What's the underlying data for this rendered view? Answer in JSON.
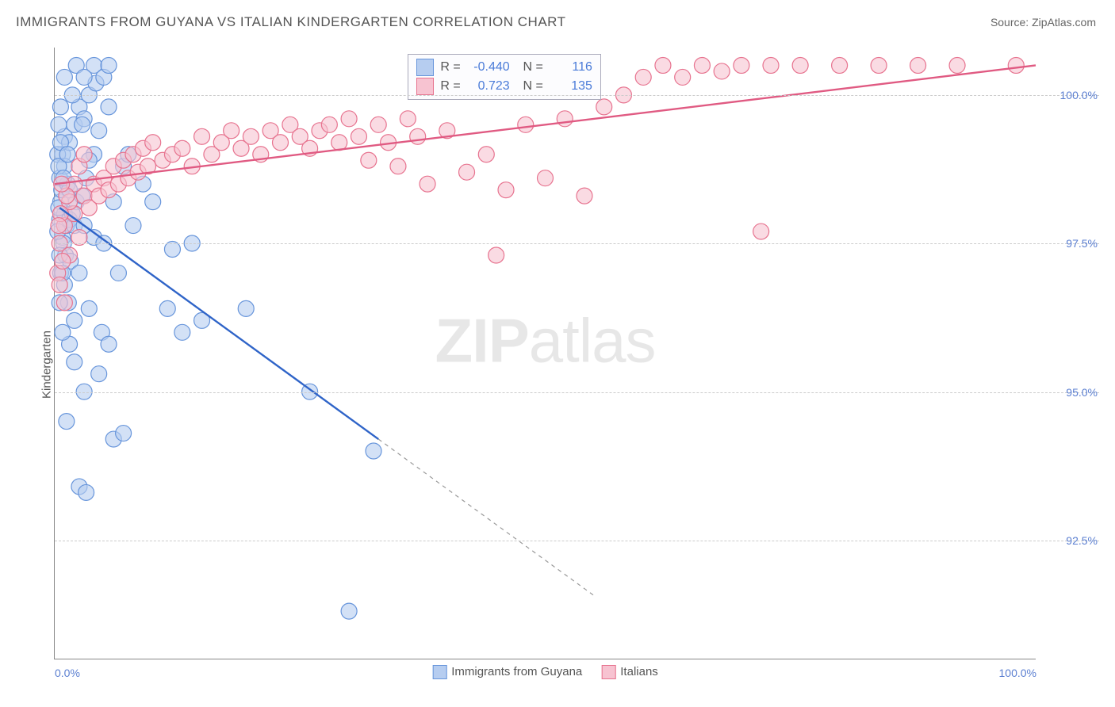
{
  "title": "IMMIGRANTS FROM GUYANA VS ITALIAN KINDERGARTEN CORRELATION CHART",
  "source_label": "Source:",
  "source_name": "ZipAtlas.com",
  "ylabel": "Kindergarten",
  "watermark_a": "ZIP",
  "watermark_b": "atlas",
  "chart": {
    "type": "scatter",
    "xlim": [
      0,
      100
    ],
    "ylim": [
      90.5,
      100.8
    ],
    "xtick_labels": [
      "0.0%",
      "100.0%"
    ],
    "xtick_pos": [
      0,
      100
    ],
    "yticks": [
      92.5,
      95.0,
      97.5,
      100.0
    ],
    "ytick_labels": [
      "92.5%",
      "95.0%",
      "97.5%",
      "100.0%"
    ],
    "grid_color": "#cccccc",
    "axis_color": "#888888",
    "background_color": "#ffffff",
    "tick_label_color": "#5b7fd1",
    "marker_radius": 10,
    "marker_stroke_width": 1.2,
    "series": [
      {
        "name": "Immigrants from Guyana",
        "fill": "#b6cdf0",
        "stroke": "#6795db",
        "fill_opacity": 0.6,
        "R": "-0.440",
        "N": "116",
        "trend": {
          "x1": 0.5,
          "y1": 98.1,
          "x2": 33,
          "y2": 94.2,
          "extend_to_x": 55,
          "stroke": "#2f64c8",
          "width": 2.4,
          "dash": "5,5"
        },
        "points": [
          [
            0.5,
            97.9
          ],
          [
            0.8,
            97.6
          ],
          [
            1.0,
            98.0
          ],
          [
            0.6,
            98.2
          ],
          [
            1.2,
            97.8
          ],
          [
            0.9,
            97.5
          ],
          [
            1.5,
            97.9
          ],
          [
            1.1,
            97.3
          ],
          [
            2.0,
            97.8
          ],
          [
            0.7,
            98.4
          ],
          [
            0.4,
            98.1
          ],
          [
            1.3,
            98.5
          ],
          [
            2.2,
            98.2
          ],
          [
            1.8,
            98.0
          ],
          [
            0.5,
            98.6
          ],
          [
            1.6,
            97.2
          ],
          [
            2.5,
            97.0
          ],
          [
            3.0,
            97.8
          ],
          [
            2.8,
            98.3
          ],
          [
            0.3,
            97.7
          ],
          [
            0.6,
            97.0
          ],
          [
            1.0,
            96.8
          ],
          [
            1.4,
            96.5
          ],
          [
            2.0,
            96.2
          ],
          [
            3.5,
            96.4
          ],
          [
            4.0,
            97.6
          ],
          [
            3.2,
            98.6
          ],
          [
            0.8,
            99.0
          ],
          [
            1.0,
            99.3
          ],
          [
            1.5,
            99.2
          ],
          [
            2.0,
            99.5
          ],
          [
            2.5,
            99.8
          ],
          [
            3.0,
            99.6
          ],
          [
            3.5,
            100.0
          ],
          [
            4.2,
            100.2
          ],
          [
            4.0,
            100.5
          ],
          [
            5.0,
            100.3
          ],
          [
            4.5,
            99.4
          ],
          [
            5.5,
            99.8
          ],
          [
            6.0,
            98.2
          ],
          [
            5.0,
            97.5
          ],
          [
            6.5,
            97.0
          ],
          [
            7.0,
            98.8
          ],
          [
            7.5,
            99.0
          ],
          [
            8.0,
            97.8
          ],
          [
            4.8,
            96.0
          ],
          [
            5.5,
            95.8
          ],
          [
            2.0,
            95.5
          ],
          [
            3.0,
            95.0
          ],
          [
            4.5,
            95.3
          ],
          [
            1.5,
            95.8
          ],
          [
            0.8,
            96.0
          ],
          [
            0.5,
            96.5
          ],
          [
            1.2,
            94.5
          ],
          [
            6.0,
            94.2
          ],
          [
            7.0,
            94.3
          ],
          [
            2.5,
            93.4
          ],
          [
            3.2,
            93.3
          ],
          [
            9.0,
            98.5
          ],
          [
            10.0,
            98.2
          ],
          [
            11.5,
            96.4
          ],
          [
            12.0,
            97.4
          ],
          [
            13.0,
            96.0
          ],
          [
            14.0,
            97.5
          ],
          [
            15.0,
            96.2
          ],
          [
            19.5,
            96.4
          ],
          [
            26.0,
            95.0
          ],
          [
            32.5,
            94.0
          ],
          [
            30.0,
            91.3
          ],
          [
            5.5,
            100.5
          ],
          [
            4.0,
            99.0
          ],
          [
            3.5,
            98.9
          ],
          [
            2.8,
            99.5
          ],
          [
            1.8,
            100.0
          ],
          [
            1.0,
            100.3
          ],
          [
            0.6,
            99.8
          ],
          [
            0.4,
            99.5
          ],
          [
            0.3,
            99.0
          ],
          [
            2.2,
            100.5
          ],
          [
            3.0,
            100.3
          ],
          [
            0.5,
            97.3
          ],
          [
            0.8,
            97.0
          ],
          [
            1.0,
            98.8
          ],
          [
            1.5,
            98.4
          ],
          [
            0.4,
            98.8
          ],
          [
            0.6,
            99.2
          ],
          [
            0.9,
            98.6
          ],
          [
            1.3,
            99.0
          ]
        ]
      },
      {
        "name": "Italians",
        "fill": "#f7c3d1",
        "stroke": "#e7738f",
        "fill_opacity": 0.6,
        "R": "0.723",
        "N": "135",
        "trend": {
          "x1": 0,
          "y1": 98.5,
          "x2": 100,
          "y2": 100.5,
          "stroke": "#e05a82",
          "width": 2.4
        },
        "points": [
          [
            0.5,
            97.5
          ],
          [
            1.0,
            97.8
          ],
          [
            1.5,
            97.3
          ],
          [
            2.0,
            98.0
          ],
          [
            2.5,
            97.6
          ],
          [
            3.0,
            98.3
          ],
          [
            3.5,
            98.1
          ],
          [
            4.0,
            98.5
          ],
          [
            4.5,
            98.3
          ],
          [
            5.0,
            98.6
          ],
          [
            5.5,
            98.4
          ],
          [
            6.0,
            98.8
          ],
          [
            6.5,
            98.5
          ],
          [
            7.0,
            98.9
          ],
          [
            7.5,
            98.6
          ],
          [
            8.0,
            99.0
          ],
          [
            8.5,
            98.7
          ],
          [
            9.0,
            99.1
          ],
          [
            9.5,
            98.8
          ],
          [
            10.0,
            99.2
          ],
          [
            11.0,
            98.9
          ],
          [
            12.0,
            99.0
          ],
          [
            13.0,
            99.1
          ],
          [
            14.0,
            98.8
          ],
          [
            15.0,
            99.3
          ],
          [
            16.0,
            99.0
          ],
          [
            17.0,
            99.2
          ],
          [
            18.0,
            99.4
          ],
          [
            19.0,
            99.1
          ],
          [
            20.0,
            99.3
          ],
          [
            21.0,
            99.0
          ],
          [
            22.0,
            99.4
          ],
          [
            23.0,
            99.2
          ],
          [
            24.0,
            99.5
          ],
          [
            25.0,
            99.3
          ],
          [
            26.0,
            99.1
          ],
          [
            27.0,
            99.4
          ],
          [
            28.0,
            99.5
          ],
          [
            29.0,
            99.2
          ],
          [
            30.0,
            99.6
          ],
          [
            31.0,
            99.3
          ],
          [
            32.0,
            98.9
          ],
          [
            33.0,
            99.5
          ],
          [
            34.0,
            99.2
          ],
          [
            35.0,
            98.8
          ],
          [
            36.0,
            99.6
          ],
          [
            37.0,
            99.3
          ],
          [
            38.0,
            98.5
          ],
          [
            40.0,
            99.4
          ],
          [
            42.0,
            98.7
          ],
          [
            44.0,
            99.0
          ],
          [
            46.0,
            98.4
          ],
          [
            48.0,
            99.5
          ],
          [
            50.0,
            98.6
          ],
          [
            52.0,
            99.6
          ],
          [
            54.0,
            98.3
          ],
          [
            56.0,
            99.8
          ],
          [
            58.0,
            100.0
          ],
          [
            60.0,
            100.3
          ],
          [
            62.0,
            100.5
          ],
          [
            64.0,
            100.3
          ],
          [
            66.0,
            100.5
          ],
          [
            68.0,
            100.4
          ],
          [
            70.0,
            100.5
          ],
          [
            73.0,
            100.5
          ],
          [
            76.0,
            100.5
          ],
          [
            80.0,
            100.5
          ],
          [
            84.0,
            100.5
          ],
          [
            88.0,
            100.5
          ],
          [
            92.0,
            100.5
          ],
          [
            98.0,
            100.5
          ],
          [
            45.0,
            97.3
          ],
          [
            72.0,
            97.7
          ],
          [
            0.3,
            97.0
          ],
          [
            0.5,
            96.8
          ],
          [
            0.8,
            97.2
          ],
          [
            1.0,
            96.5
          ],
          [
            1.5,
            98.2
          ],
          [
            2.0,
            98.5
          ],
          [
            0.6,
            98.0
          ],
          [
            1.2,
            98.3
          ],
          [
            2.5,
            98.8
          ],
          [
            3.0,
            99.0
          ],
          [
            0.4,
            97.8
          ],
          [
            0.7,
            98.5
          ]
        ]
      }
    ],
    "stats_box": {
      "left_pct": 36,
      "top_pct": 1
    },
    "x_legend_items": [
      {
        "label": "Immigrants from Guyana",
        "fill": "#b6cdf0",
        "stroke": "#6795db"
      },
      {
        "label": "Italians",
        "fill": "#f7c3d1",
        "stroke": "#e7738f"
      }
    ]
  }
}
